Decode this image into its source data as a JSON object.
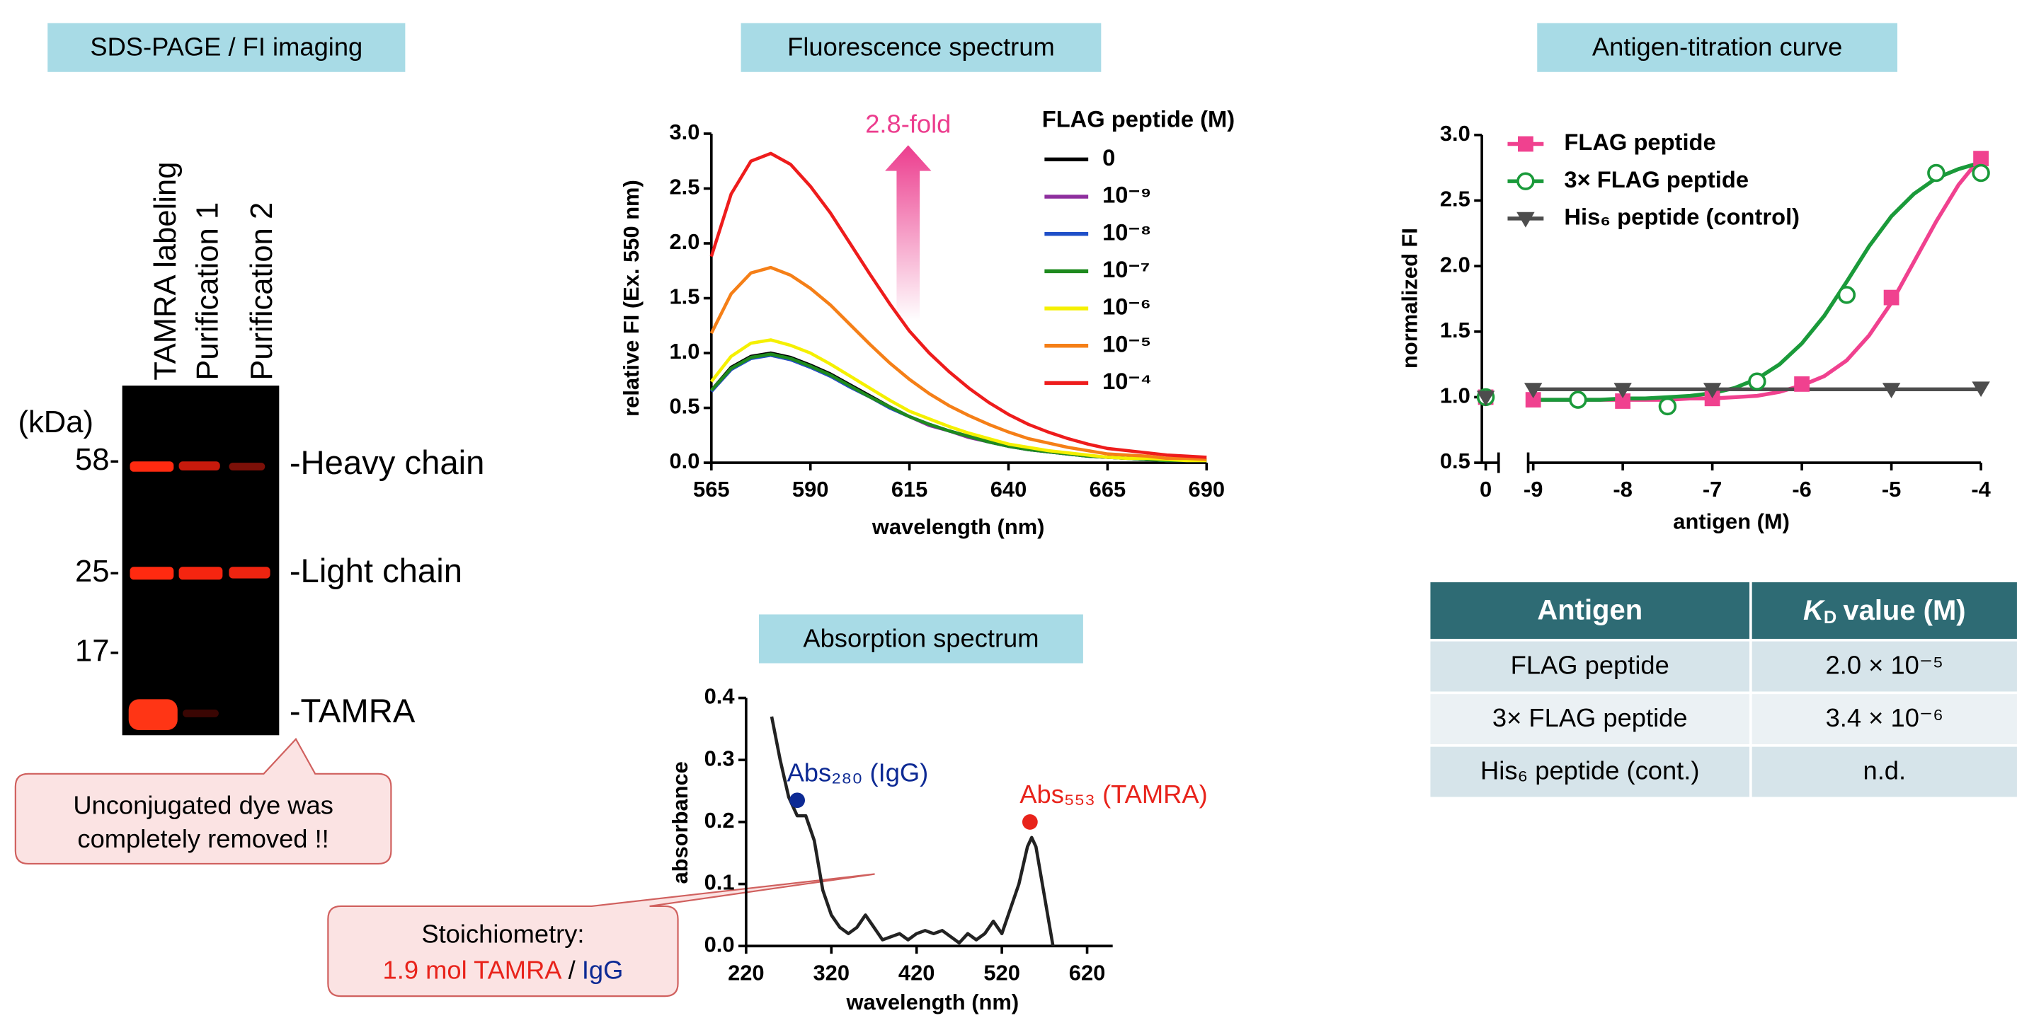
{
  "gel": {
    "title": "SDS-PAGE / FI imaging",
    "lanes": [
      "TAMRA labeling",
      "Purification 1",
      "Purification 2"
    ],
    "unit": "(kDa)",
    "markers": [
      "58-",
      "25-",
      "17-"
    ],
    "bands": [
      "-Heavy chain",
      "-Light chain",
      "-TAMRA"
    ],
    "callout": [
      "Unconjugated dye was",
      "completely removed !!"
    ]
  },
  "stoichiometry": {
    "line1": "Stoichiometry:",
    "mol": "1.9 mol TAMRA",
    "sep": "/",
    "igg": "IgG"
  },
  "chart_data": [
    {
      "type": "line",
      "title": "Fluorescence spectrum",
      "annotation": "2.8-fold",
      "annotation_color": "#ec3d8e",
      "xlabel": "wavelength (nm)",
      "ylabel": "relative FI (Ex. 550 nm)",
      "legend_title": "FLAG peptide (M)",
      "x": [
        565,
        570,
        575,
        580,
        585,
        590,
        595,
        600,
        605,
        610,
        615,
        620,
        625,
        630,
        635,
        640,
        645,
        650,
        655,
        660,
        665,
        670,
        675,
        680,
        685,
        690
      ],
      "xlim": [
        565,
        690
      ],
      "xticks": [
        565,
        590,
        615,
        640,
        665,
        690
      ],
      "ylim": [
        0,
        3
      ],
      "yticks": [
        {
          "value": 0,
          "label": "0.0"
        },
        {
          "value": 0.5,
          "label": "0.5"
        },
        {
          "value": 1,
          "label": "1.0"
        },
        {
          "value": 1.5,
          "label": "1.5"
        },
        {
          "value": 2,
          "label": "2.0"
        },
        {
          "value": 2.5,
          "label": "2.5"
        },
        {
          "value": 3,
          "label": "3.0"
        }
      ],
      "series": [
        {
          "name": "0",
          "color": "#000000",
          "values": [
            0.66,
            0.87,
            0.97,
            1.0,
            0.96,
            0.89,
            0.81,
            0.71,
            0.61,
            0.51,
            0.42,
            0.35,
            0.29,
            0.24,
            0.19,
            0.16,
            0.12,
            0.1,
            0.08,
            0.06,
            0.05,
            0.04,
            0.03,
            0.03,
            0.02,
            0.02
          ]
        },
        {
          "name": "10⁻⁹",
          "color": "#8e2f9e",
          "values": [
            0.65,
            0.85,
            0.96,
            0.98,
            0.94,
            0.87,
            0.79,
            0.69,
            0.6,
            0.5,
            0.42,
            0.34,
            0.29,
            0.23,
            0.19,
            0.15,
            0.12,
            0.1,
            0.08,
            0.06,
            0.05,
            0.04,
            0.03,
            0.02,
            0.02,
            0.02
          ]
        },
        {
          "name": "10⁻⁸",
          "color": "#1f4fc8",
          "values": [
            0.65,
            0.85,
            0.95,
            0.98,
            0.94,
            0.87,
            0.79,
            0.69,
            0.6,
            0.5,
            0.42,
            0.35,
            0.29,
            0.24,
            0.19,
            0.15,
            0.12,
            0.1,
            0.08,
            0.06,
            0.05,
            0.04,
            0.03,
            0.02,
            0.02,
            0.02
          ]
        },
        {
          "name": "10⁻⁷",
          "color": "#1e8a1e",
          "values": [
            0.66,
            0.86,
            0.96,
            0.99,
            0.95,
            0.88,
            0.8,
            0.7,
            0.6,
            0.51,
            0.42,
            0.35,
            0.29,
            0.24,
            0.19,
            0.15,
            0.12,
            0.1,
            0.08,
            0.06,
            0.05,
            0.04,
            0.03,
            0.02,
            0.02,
            0.02
          ]
        },
        {
          "name": "10⁻⁶",
          "color": "#f5f000",
          "values": [
            0.74,
            0.97,
            1.09,
            1.12,
            1.07,
            1.0,
            0.9,
            0.79,
            0.68,
            0.57,
            0.47,
            0.4,
            0.33,
            0.27,
            0.22,
            0.17,
            0.14,
            0.11,
            0.09,
            0.07,
            0.05,
            0.04,
            0.04,
            0.03,
            0.02,
            0.02
          ]
        },
        {
          "name": "10⁻⁵",
          "color": "#f57f17",
          "values": [
            1.18,
            1.54,
            1.73,
            1.78,
            1.71,
            1.59,
            1.44,
            1.26,
            1.08,
            0.91,
            0.76,
            0.63,
            0.52,
            0.43,
            0.35,
            0.28,
            0.22,
            0.18,
            0.14,
            0.11,
            0.08,
            0.07,
            0.06,
            0.04,
            0.04,
            0.03
          ]
        },
        {
          "name": "10⁻⁴",
          "color": "#ee1c1c",
          "values": [
            1.88,
            2.45,
            2.75,
            2.82,
            2.72,
            2.52,
            2.28,
            2.0,
            1.72,
            1.45,
            1.2,
            1.0,
            0.83,
            0.68,
            0.55,
            0.44,
            0.35,
            0.28,
            0.22,
            0.17,
            0.13,
            0.11,
            0.09,
            0.07,
            0.06,
            0.05
          ]
        }
      ]
    },
    {
      "type": "line",
      "title": "Absorption spectrum",
      "xlabel": "wavelength (nm)",
      "ylabel": "absorbance",
      "x": [
        250,
        260,
        270,
        280,
        290,
        300,
        310,
        320,
        330,
        340,
        350,
        360,
        370,
        380,
        390,
        400,
        410,
        420,
        430,
        440,
        450,
        460,
        470,
        480,
        490,
        500,
        510,
        520,
        530,
        540,
        550,
        555,
        560,
        570,
        580
      ],
      "xlim": [
        220,
        650
      ],
      "xticks": [
        220,
        320,
        420,
        520,
        620
      ],
      "ylim": [
        0,
        0.4
      ],
      "yticks": [
        {
          "value": 0,
          "label": "0.0"
        },
        {
          "value": 0.1,
          "label": "0.1"
        },
        {
          "value": 0.2,
          "label": "0.2"
        },
        {
          "value": 0.3,
          "label": "0.3"
        },
        {
          "value": 0.4,
          "label": "0.4"
        }
      ],
      "series": [
        {
          "color": "#222222",
          "values": [
            0.37,
            0.3,
            0.24,
            0.21,
            0.21,
            0.17,
            0.09,
            0.05,
            0.03,
            0.02,
            0.03,
            0.05,
            0.03,
            0.01,
            0.015,
            0.02,
            0.01,
            0.02,
            0.025,
            0.02,
            0.025,
            0.015,
            0.005,
            0.02,
            0.01,
            0.02,
            0.04,
            0.02,
            0.06,
            0.1,
            0.16,
            0.175,
            0.16,
            0.08,
            0.0
          ]
        }
      ],
      "points": [
        {
          "label": "Abs₂₈₀ (IgG)",
          "x": 280,
          "y": 0.235,
          "color": "#0d2a94"
        },
        {
          "label": "Abs₅₅₃ (TAMRA)",
          "x": 553,
          "y": 0.2,
          "color": "#e8231b"
        }
      ]
    },
    {
      "type": "scatter",
      "title": "Antigen-titration curve",
      "xlabel": "antigen (M)",
      "ylabel": "normalized FI",
      "xlim": [
        -9.2,
        -4
      ],
      "xticks": [
        0,
        -9,
        -8,
        -7,
        -6,
        -5,
        -4
      ],
      "ylim": [
        0.5,
        3
      ],
      "yticks": [
        {
          "value": 0.5,
          "label": "0.5"
        },
        {
          "value": 1,
          "label": "1.0"
        },
        {
          "value": 1.5,
          "label": "1.5"
        },
        {
          "value": 2,
          "label": "2.0"
        },
        {
          "value": 2.5,
          "label": "2.5"
        },
        {
          "value": 3,
          "label": "3.0"
        }
      ],
      "fit_x": [
        -9,
        -8.75,
        -8.5,
        -8.25,
        -8,
        -7.75,
        -7.5,
        -7.25,
        -7,
        -6.75,
        -6.5,
        -6.25,
        -6,
        -5.75,
        -5.5,
        -5.25,
        -5,
        -4.75,
        -4.5,
        -4.25,
        -4
      ],
      "series": [
        {
          "name": "FLAG peptide",
          "color": "#f0418f",
          "marker": "square",
          "x": [
            0,
            -9,
            -8,
            -7,
            -6,
            -5,
            -4
          ],
          "values": [
            1.0,
            0.98,
            0.97,
            0.99,
            1.1,
            1.76,
            2.82
          ],
          "fit": [
            0.98,
            0.98,
            0.98,
            0.98,
            0.98,
            0.98,
            0.98,
            0.99,
            0.99,
            1.0,
            1.01,
            1.04,
            1.09,
            1.16,
            1.28,
            1.47,
            1.72,
            2.03,
            2.34,
            2.62,
            2.83
          ]
        },
        {
          "name": "3× FLAG peptide",
          "color": "#1a9a3a",
          "marker": "circle",
          "x": [
            0,
            -8.5,
            -7.5,
            -6.5,
            -5.5,
            -4.5,
            -4
          ],
          "values": [
            1.0,
            0.98,
            0.93,
            1.12,
            1.78,
            2.71,
            2.71
          ],
          "fit": [
            0.98,
            0.98,
            0.98,
            0.98,
            0.99,
            0.99,
            1.0,
            1.01,
            1.03,
            1.07,
            1.14,
            1.25,
            1.41,
            1.62,
            1.88,
            2.15,
            2.38,
            2.55,
            2.67,
            2.74,
            2.79
          ]
        },
        {
          "name": "His₆ peptide (control)",
          "color": "#4d4d4d",
          "marker": "triangle",
          "x": [
            0,
            -9,
            -8,
            -7,
            -5,
            -4
          ],
          "values": [
            1.0,
            1.06,
            1.06,
            1.06,
            1.06,
            1.07
          ],
          "fit": [
            1.06,
            1.06,
            1.06,
            1.06,
            1.06,
            1.06,
            1.06,
            1.06,
            1.06,
            1.06,
            1.06,
            1.06,
            1.06,
            1.06,
            1.06,
            1.06,
            1.06,
            1.06,
            1.06,
            1.06,
            1.06
          ]
        }
      ]
    }
  ],
  "table": {
    "header": [
      "Antigen",
      {
        "symbol": "K",
        "subscript": "D",
        "text": "value (M)"
      }
    ],
    "rows": [
      [
        "FLAG peptide",
        "2.0 × 10⁻⁵"
      ],
      [
        "3× FLAG peptide",
        "3.4 × 10⁻⁶"
      ],
      [
        "His₆ peptide (cont.)",
        "n.d."
      ]
    ]
  }
}
